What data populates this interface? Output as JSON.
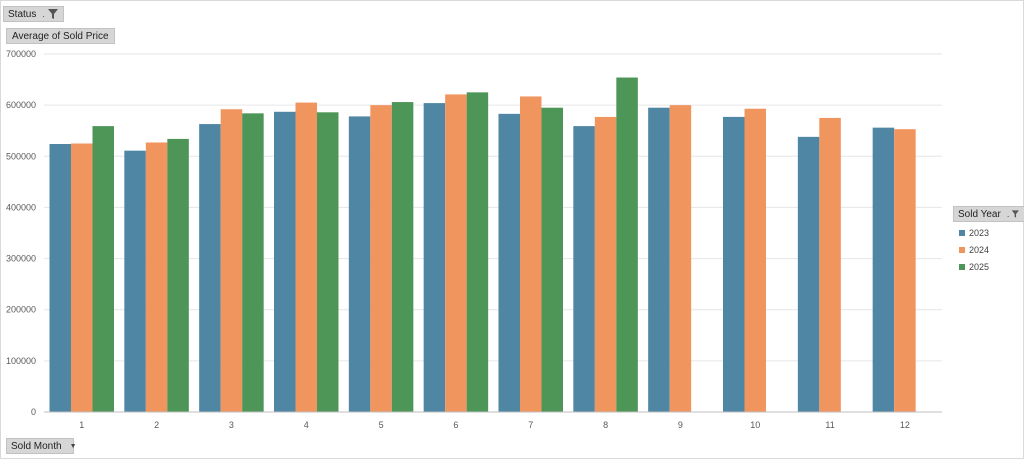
{
  "filters": {
    "status_label": "Status",
    "measure_label": "Average of Sold Price",
    "axis_field_label": "Sold Month",
    "legend_field_label": "Sold Year"
  },
  "chart_data": {
    "type": "bar",
    "categories": [
      "1",
      "2",
      "3",
      "4",
      "5",
      "6",
      "7",
      "8",
      "9",
      "10",
      "11",
      "12"
    ],
    "series": [
      {
        "name": "2023",
        "color": "#4e86a4",
        "values": [
          524000,
          511000,
          563000,
          587000,
          578000,
          604000,
          583000,
          559000,
          595000,
          577000,
          538000,
          556000
        ]
      },
      {
        "name": "2024",
        "color": "#f1955f",
        "values": [
          525000,
          527000,
          592000,
          605000,
          600000,
          621000,
          617000,
          577000,
          600000,
          593000,
          575000,
          553000
        ]
      },
      {
        "name": "2025",
        "color": "#4e9558",
        "values": [
          559000,
          534000,
          584000,
          586000,
          606000,
          625000,
          595000,
          654000,
          null,
          null,
          null,
          null
        ]
      }
    ],
    "ylim": [
      0,
      700000
    ],
    "yticks": [
      "0",
      "100000",
      "200000",
      "300000",
      "400000",
      "500000",
      "600000",
      "700000"
    ],
    "grid": true,
    "legend_position": "right"
  }
}
